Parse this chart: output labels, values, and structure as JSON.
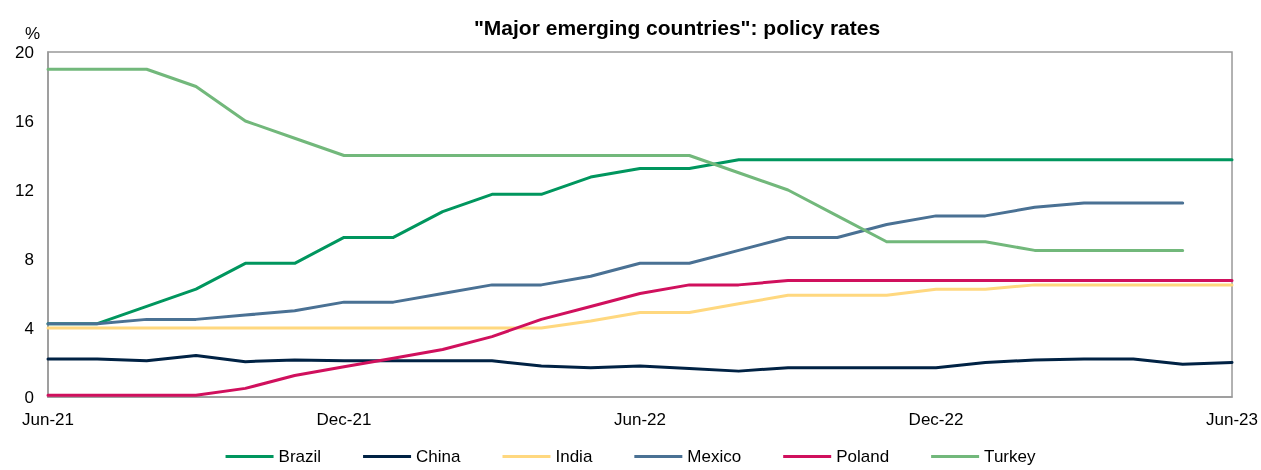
{
  "chart_data": {
    "type": "line",
    "title": "\"Major emerging countries\": policy rates",
    "ylabel": "%",
    "categories": [
      "Jun-21",
      null,
      null,
      null,
      null,
      null,
      "Dec-21",
      null,
      null,
      null,
      null,
      null,
      "Jun-22",
      null,
      null,
      null,
      null,
      null,
      "Dec-22",
      null,
      null,
      null,
      null,
      null,
      "Jun-23"
    ],
    "series": [
      {
        "name": "Brazil",
        "color": "#00965e",
        "values": [
          4.25,
          4.25,
          5.25,
          6.25,
          7.75,
          7.75,
          9.25,
          9.25,
          10.75,
          11.75,
          11.75,
          12.75,
          13.25,
          13.25,
          13.75,
          13.75,
          13.75,
          13.75,
          13.75,
          13.75,
          13.75,
          13.75,
          13.75,
          13.75,
          13.75
        ]
      },
      {
        "name": "China",
        "color": "#002244",
        "values": [
          2.2,
          2.2,
          2.1,
          2.4,
          2.05,
          2.15,
          2.1,
          2.1,
          2.1,
          2.1,
          1.8,
          1.7,
          1.8,
          1.65,
          1.5,
          1.7,
          1.7,
          1.7,
          1.7,
          2.0,
          2.15,
          2.2,
          2.2,
          1.9,
          2.0
        ]
      },
      {
        "name": "India",
        "color": "#ffd87f",
        "values": [
          4,
          4,
          4,
          4,
          4,
          4,
          4,
          4,
          4,
          4,
          4,
          4.4,
          4.9,
          4.9,
          5.4,
          5.9,
          5.9,
          5.9,
          6.25,
          6.25,
          6.5,
          6.5,
          6.5,
          6.5,
          6.5
        ]
      },
      {
        "name": "Mexico",
        "color": "#4a7194",
        "values": [
          4.25,
          4.25,
          4.5,
          4.5,
          4.75,
          5,
          5.5,
          5.5,
          6,
          6.5,
          6.5,
          7,
          7.75,
          7.75,
          8.5,
          9.25,
          9.25,
          10,
          10.5,
          10.5,
          11,
          11.25,
          11.25,
          11.25,
          null
        ]
      },
      {
        "name": "Poland",
        "color": "#d0105d",
        "values": [
          0.1,
          0.1,
          0.1,
          0.1,
          0.5,
          1.25,
          1.75,
          2.25,
          2.75,
          3.5,
          4.5,
          5.25,
          6,
          6.5,
          6.5,
          6.75,
          6.75,
          6.75,
          6.75,
          6.75,
          6.75,
          6.75,
          6.75,
          6.75,
          6.75
        ]
      },
      {
        "name": "Turkey",
        "color": "#72b87b",
        "values": [
          19,
          19,
          19,
          18,
          16,
          15,
          14,
          14,
          14,
          14,
          14,
          14,
          14,
          14,
          13,
          12,
          10.5,
          9,
          9,
          9,
          8.5,
          8.5,
          8.5,
          8.5,
          null
        ]
      }
    ],
    "ylim": [
      0,
      20
    ],
    "yticks": [
      0,
      4,
      8,
      12,
      16,
      20
    ],
    "grid": false,
    "legend": "bottom",
    "marker": "none",
    "line_style": "solid"
  }
}
